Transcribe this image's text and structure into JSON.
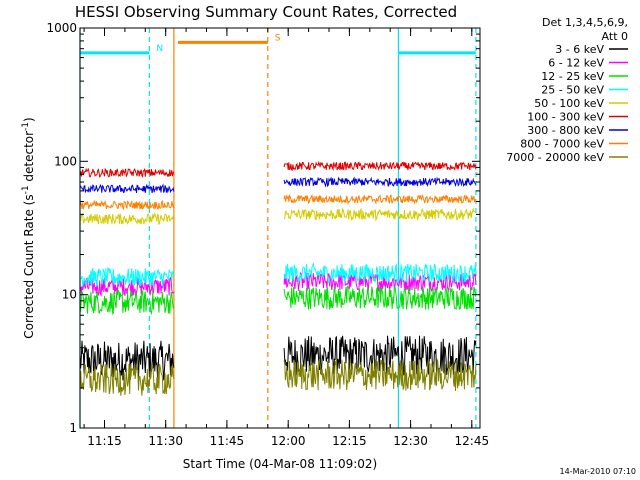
{
  "chart_data": {
    "type": "line",
    "title": "HESSI Observing Summary Count Rates, Corrected",
    "xlabel": "Start Time (04-Mar-08 11:09:02)",
    "ylabel_prefix": "Corrected Count Rate (s",
    "ylabel_mid": " detector",
    "ylabel_sup": "-1",
    "ylabel_suffix": ")",
    "y_scale": "log",
    "ylim": [
      1,
      1000
    ],
    "xlim": [
      "11:09",
      "12:47"
    ],
    "x_ticks": [
      "11:15",
      "11:30",
      "11:45",
      "12:00",
      "12:15",
      "12:30",
      "12:45"
    ],
    "y_ticks": [
      "1",
      "10",
      "100",
      "1000"
    ],
    "legend_title": [
      "Det 1,3,4,5,6,9,",
      "Att 0"
    ],
    "legend_position": "right",
    "timestamp": "14-Mar-2010 07:10",
    "series": [
      {
        "name": "3 - 6 keV",
        "color": "#000000",
        "segments": [
          {
            "start": "11:09",
            "end": "11:32",
            "level": 3.2
          },
          {
            "start": "11:59",
            "end": "12:46",
            "level": 3.5
          }
        ]
      },
      {
        "name": "6 - 12 keV",
        "color": "#ff00ff",
        "segments": [
          {
            "start": "11:09",
            "end": "11:32",
            "level": 11.5
          },
          {
            "start": "11:59",
            "end": "12:46",
            "level": 12.5
          }
        ]
      },
      {
        "name": "12 - 25 keV",
        "color": "#00e000",
        "segments": [
          {
            "start": "11:09",
            "end": "11:32",
            "level": 8.8
          },
          {
            "start": "11:59",
            "end": "12:46",
            "level": 9.5
          }
        ]
      },
      {
        "name": "25 - 50 keV",
        "color": "#00ffff",
        "segments": [
          {
            "start": "11:09",
            "end": "11:32",
            "level": 13.5
          },
          {
            "start": "11:59",
            "end": "12:46",
            "level": 14.5
          }
        ]
      },
      {
        "name": "50 - 100 keV",
        "color": "#d4cc00",
        "segments": [
          {
            "start": "11:09",
            "end": "11:32",
            "level": 37
          },
          {
            "start": "11:59",
            "end": "12:46",
            "level": 40
          }
        ]
      },
      {
        "name": "100 - 300 keV",
        "color": "#e00000",
        "segments": [
          {
            "start": "11:09",
            "end": "11:32",
            "level": 82
          },
          {
            "start": "11:59",
            "end": "12:46",
            "level": 92
          }
        ]
      },
      {
        "name": "300 - 800 keV",
        "color": "#0000e0",
        "segments": [
          {
            "start": "11:09",
            "end": "11:32",
            "level": 62
          },
          {
            "start": "11:59",
            "end": "12:46",
            "level": 70
          }
        ]
      },
      {
        "name": "800 - 7000 keV",
        "color": "#ff8000",
        "segments": [
          {
            "start": "11:09",
            "end": "11:32",
            "level": 47
          },
          {
            "start": "11:59",
            "end": "12:46",
            "level": 52
          }
        ]
      },
      {
        "name": "7000 - 20000 keV",
        "color": "#808000",
        "segments": [
          {
            "start": "11:09",
            "end": "11:32",
            "level": 2.3
          },
          {
            "start": "11:59",
            "end": "12:46",
            "level": 2.5
          }
        ]
      }
    ],
    "flags": [
      {
        "label": "N",
        "color": "#00e5ff",
        "bars": [
          {
            "start": "11:09",
            "end": "11:26",
            "level": 650
          },
          {
            "start": "12:27",
            "end": "12:46",
            "level": 650
          }
        ]
      },
      {
        "label": "S",
        "color": "#ff8000",
        "bars": [
          {
            "start": "11:33",
            "end": "11:55",
            "level": 780
          }
        ]
      }
    ],
    "markers": [
      {
        "time": "11:09",
        "color": "#00e5ff",
        "style": "solid"
      },
      {
        "time": "11:26",
        "color": "#00e5ff",
        "style": "dashed"
      },
      {
        "time": "11:32",
        "color": "#ff8000",
        "style": "solid"
      },
      {
        "time": "11:55",
        "color": "#ff8000",
        "style": "dashed"
      },
      {
        "time": "12:27",
        "color": "#00e5ff",
        "style": "solid"
      },
      {
        "time": "12:46",
        "color": "#00e5ff",
        "style": "dashed"
      }
    ]
  }
}
